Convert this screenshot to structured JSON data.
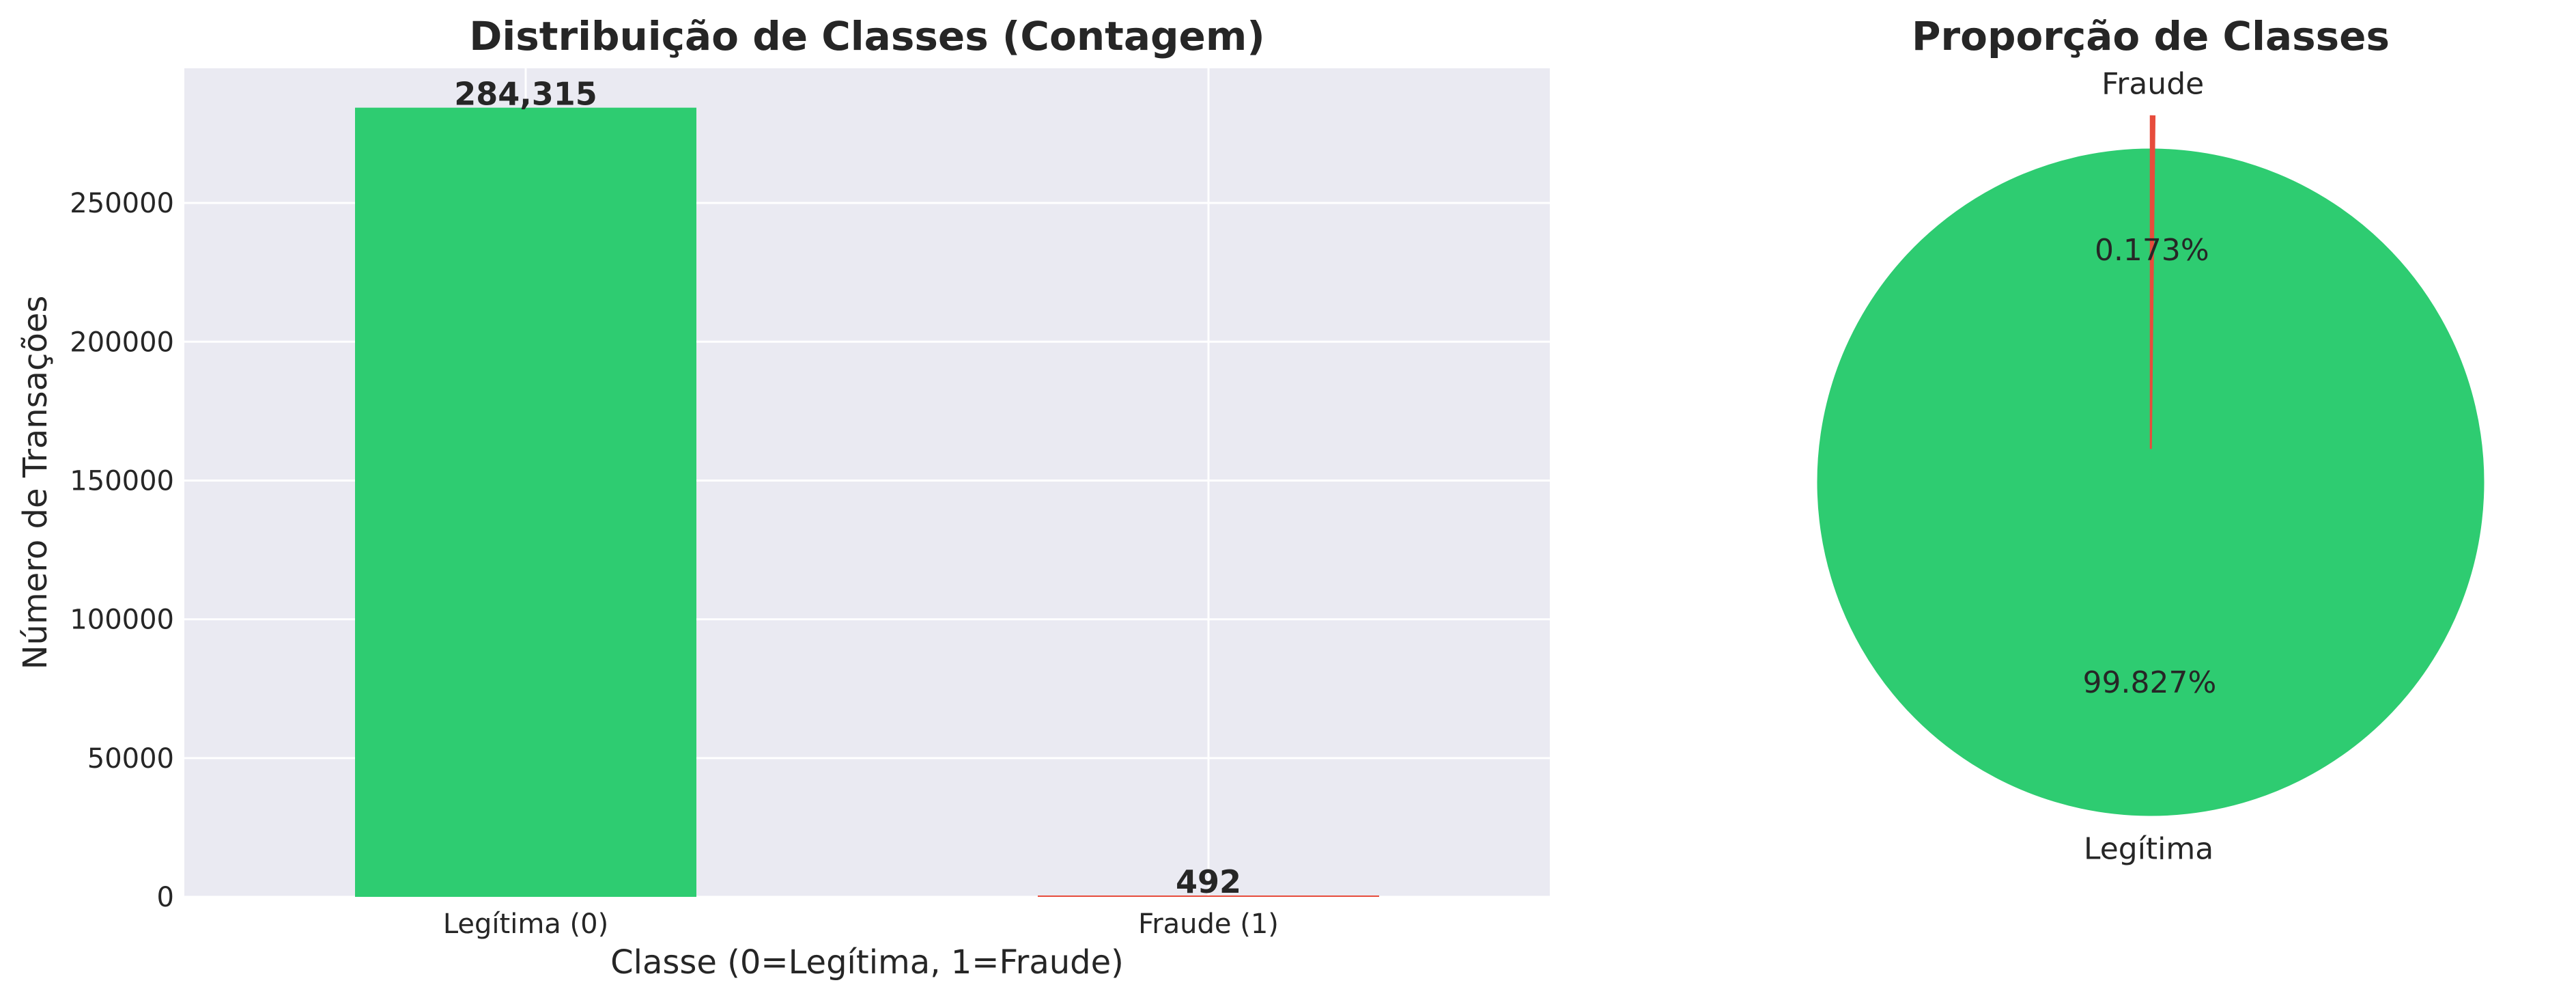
{
  "chart_data": [
    {
      "type": "bar",
      "title": "Distribuição de Classes (Contagem)",
      "xlabel": "Classe (0=Legítima, 1=Fraude)",
      "ylabel": "Número de Transações",
      "categories": [
        "Legítima (0)",
        "Fraude (1)"
      ],
      "values": [
        284315,
        492
      ],
      "value_labels": [
        "284,315",
        "492"
      ],
      "colors": [
        "#2ecc71",
        "#e74c3c"
      ],
      "ylim": [
        0,
        298500
      ],
      "yticks": [
        0,
        50000,
        100000,
        150000,
        200000,
        250000
      ],
      "ytick_labels": [
        "0",
        "50000",
        "100000",
        "150000",
        "200000",
        "250000"
      ],
      "grid": true,
      "background": "#eaeaf2"
    },
    {
      "type": "pie",
      "title": "Proporção de Classes",
      "labels": [
        "Legítima",
        "Fraude"
      ],
      "values": [
        99.827,
        0.173
      ],
      "pct_labels": [
        "99.827%",
        "0.173%"
      ],
      "colors": [
        "#2ecc71",
        "#e74c3c"
      ],
      "explode": [
        0,
        0.1
      ],
      "start_angle_deg": 90
    }
  ]
}
